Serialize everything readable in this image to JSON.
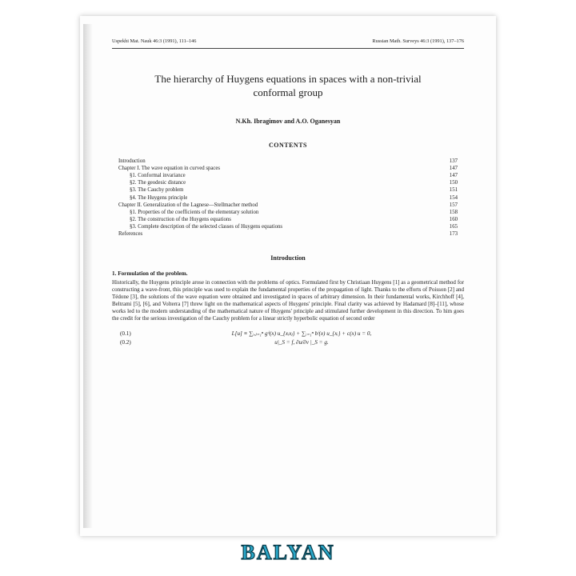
{
  "running_heads": {
    "left": "Uspekhi Mat. Nauk 46:3 (1991), 111–146",
    "right": "Russian Math. Surveys 46:3 (1991), 137–176"
  },
  "title": "The hierarchy of Huygens equations in spaces with a non-trivial conformal group",
  "authors": "N.Kh. Ibragimov and A.O. Oganesyan",
  "contents_heading": "CONTENTS",
  "toc": [
    {
      "label": "Introduction",
      "page": "137",
      "indent": 0
    },
    {
      "label": "Chapter I.  The wave equation in curved spaces",
      "page": "147",
      "indent": 0
    },
    {
      "label": "§1.  Conformal invariance",
      "page": "147",
      "indent": 1
    },
    {
      "label": "§2.  The geodesic distance",
      "page": "150",
      "indent": 1
    },
    {
      "label": "§3.  The Cauchy problem",
      "page": "151",
      "indent": 1
    },
    {
      "label": "§4.  The Huygens principle",
      "page": "154",
      "indent": 1
    },
    {
      "label": "Chapter II.  Generalization of the Lagnese—Stellmacher method",
      "page": "157",
      "indent": 0
    },
    {
      "label": "§1.  Properties of the coefficients of the elementary solution",
      "page": "158",
      "indent": 1
    },
    {
      "label": "§2.  The construction of the Huygens equations",
      "page": "160",
      "indent": 1
    },
    {
      "label": "§3.  Complete description of the selected classes of Huygens equations",
      "page": "165",
      "indent": 1
    },
    {
      "label": "References",
      "page": "173",
      "indent": 0
    }
  ],
  "intro_heading": "Introduction",
  "sub_heading": "1.  Formulation of the problem.",
  "body": "Historically, the Huygens principle arose in connection with the problems of optics. Formulated first by Christiaan Huygens [1] as a geometrical method for constructing a wave-front, this principle was used to explain the fundamental properties of the propagation of light. Thanks to the efforts of Poisson [2] and Tédone [3], the solutions of the wave equation were obtained and investigated in spaces of arbitrary dimension. In their fundamental works, Kirchhoff [4], Beltrami [5], [6], and Volterra [7] threw light on the mathematical aspects of Huygens' principle. Final clarity was achieved by Hadamard [8]–[11], whose works led to the modern understanding of the mathematical nature of Huygens' principle and stimulated further development in this direction. To him goes the credit for the serious investigation of the Cauchy problem for a linear strictly hyperbolic equation of second order",
  "equations": [
    {
      "num": "(0.1)",
      "math": "L[u] ≡  ∑ᵢ,ⱼ₌₁ⁿ gⁱʲ(x) u_{xᵢxⱼ}  +  ∑ᵢ₌₁ⁿ bⁱ(x) u_{xᵢ}  +  c(x) u  =  0,"
    },
    {
      "num": "(0.2)",
      "math": "u|_S = f,     ∂u/∂ν |_S = g."
    }
  ],
  "watermark": "BALYAN"
}
